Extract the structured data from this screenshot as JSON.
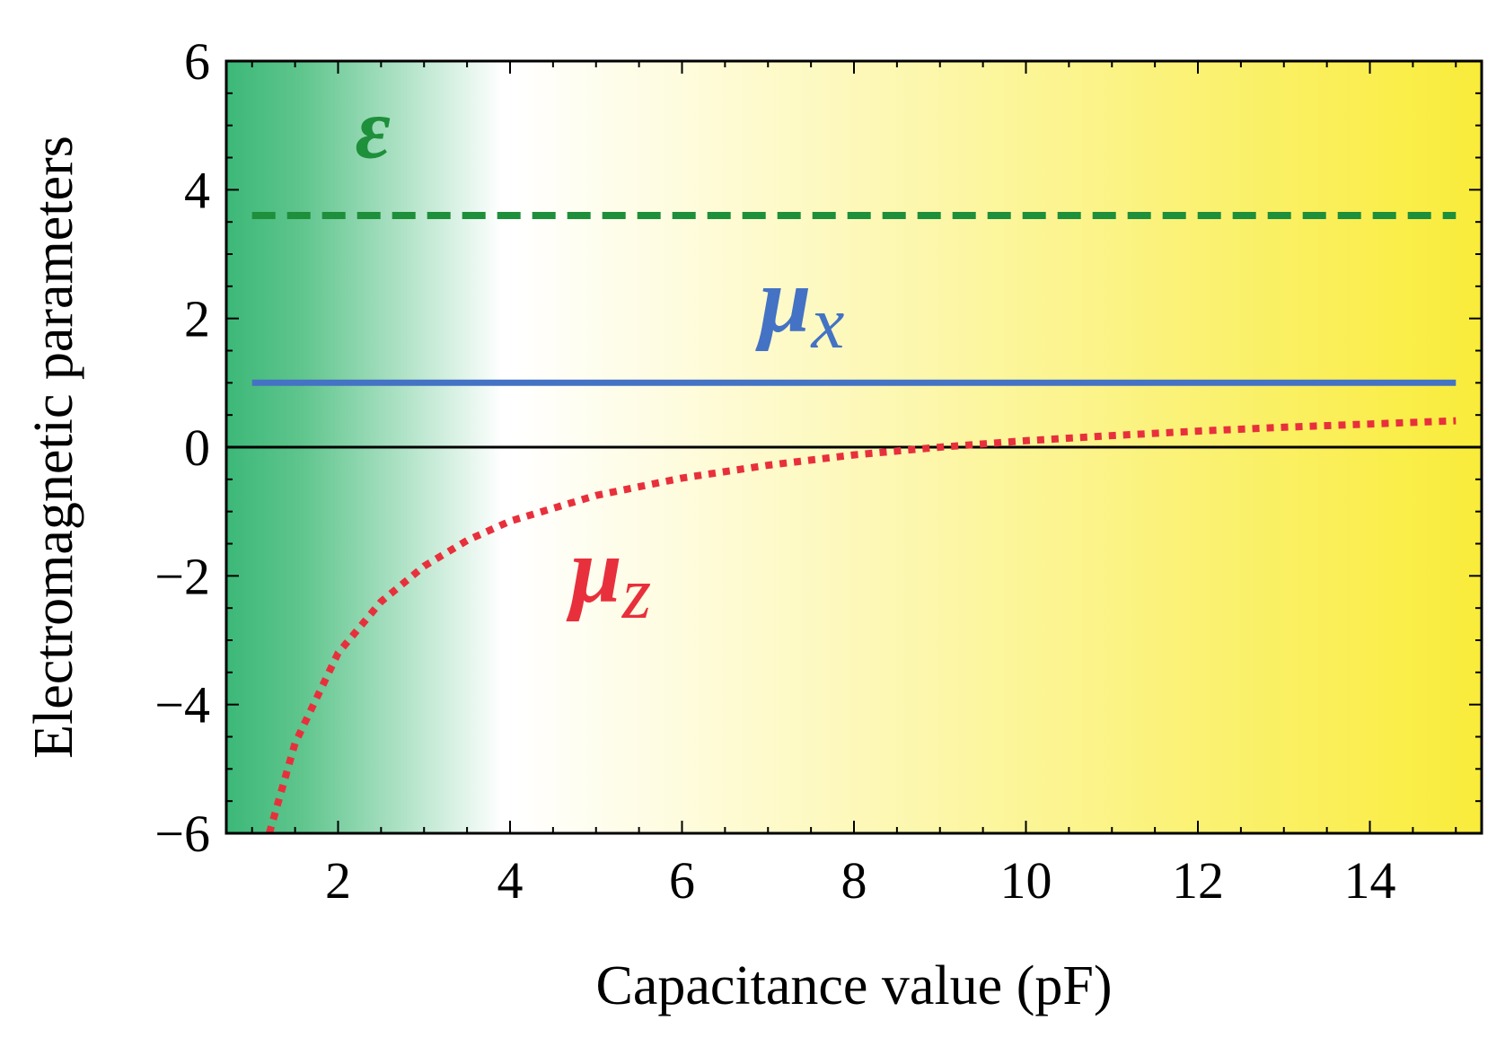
{
  "chart_data": {
    "type": "line",
    "title": "",
    "xlabel": "Capacitance value (pF)",
    "ylabel": "Electromagnetic  parameters",
    "xlim": [
      0.7,
      15.3
    ],
    "ylim": [
      -6,
      6
    ],
    "x_ticks": [
      2,
      4,
      6,
      8,
      10,
      12,
      14
    ],
    "y_ticks": [
      6,
      4,
      2,
      0,
      -2,
      -4,
      -6
    ],
    "x_tick_labels": [
      "2",
      "4",
      "6",
      "8",
      "10",
      "12",
      "14"
    ],
    "y_tick_labels": [
      "6",
      "4",
      "2",
      "0",
      "−2",
      "−4",
      "−6"
    ],
    "zero_line": true,
    "background_gradient": [
      "#3cb878",
      "#ffffff",
      "#f9ec3a"
    ],
    "series": [
      {
        "name": "ε",
        "label_main": "ε",
        "label_sub": "",
        "style": "dashed",
        "color": "#1e8f3a",
        "x": [
          1,
          15
        ],
        "y": [
          3.6,
          3.6
        ]
      },
      {
        "name": "μx",
        "label_main": "μ",
        "label_sub": "x",
        "style": "solid",
        "color": "#4472c4",
        "x": [
          1,
          15
        ],
        "y": [
          1.0,
          1.0
        ]
      },
      {
        "name": "μz",
        "label_main": "μ",
        "label_sub": "z",
        "style": "dotted",
        "color": "#e8303c",
        "x": [
          1.2,
          1.5,
          2,
          2.5,
          3,
          3.5,
          4,
          5,
          6,
          7,
          8,
          9,
          10,
          11,
          12,
          13,
          14,
          15
        ],
        "y": [
          -6.0,
          -4.6,
          -3.2,
          -2.4,
          -1.85,
          -1.45,
          -1.15,
          -0.75,
          -0.48,
          -0.28,
          -0.12,
          0.0,
          0.1,
          0.18,
          0.25,
          0.31,
          0.36,
          0.41
        ]
      }
    ]
  }
}
